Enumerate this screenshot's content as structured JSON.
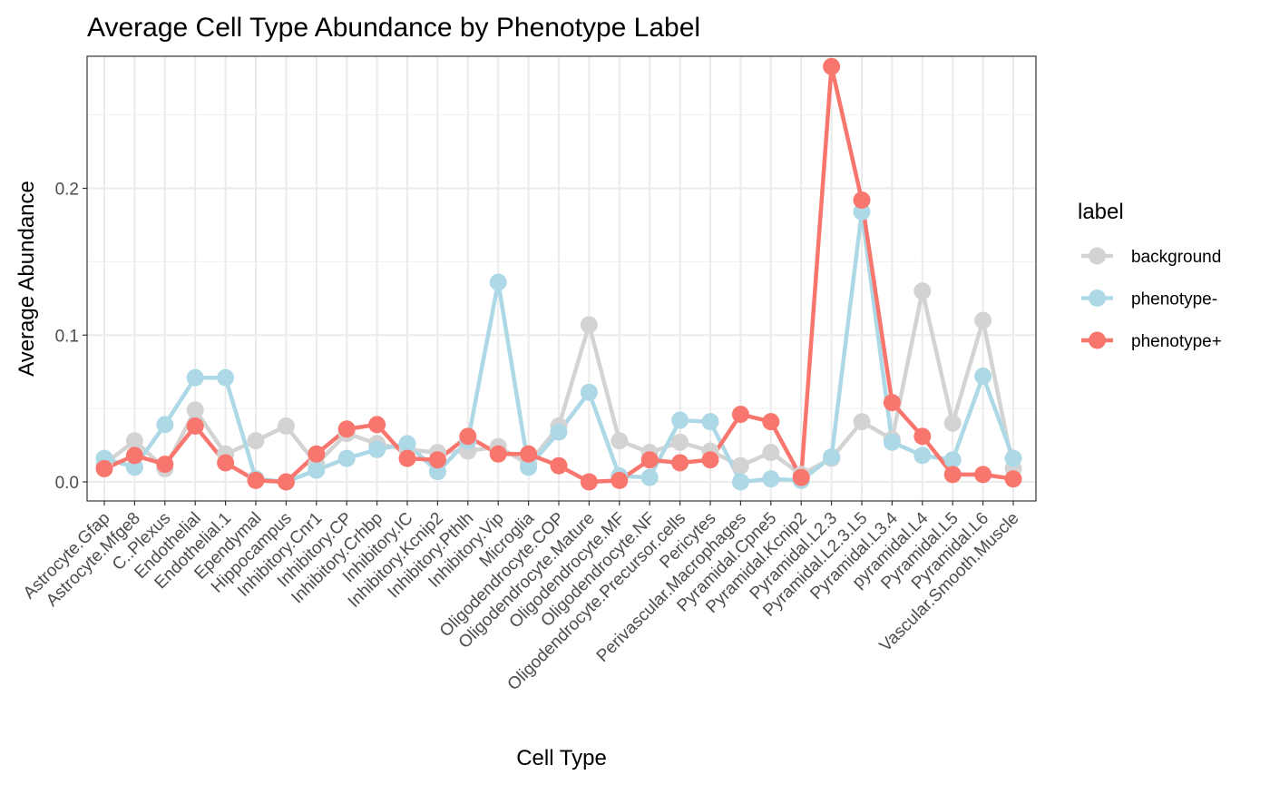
{
  "chart_data": {
    "type": "line",
    "title": "Average Cell Type Abundance by Phenotype Label",
    "xlabel": "Cell Type",
    "ylabel": "Average Abundance",
    "ylim": [
      -0.013,
      0.29
    ],
    "yticks": [
      0.0,
      0.1,
      0.2
    ],
    "ytick_labels": [
      "0.0",
      "0.1",
      "0.2"
    ],
    "grid": true,
    "legend": {
      "title": "label",
      "position": "right"
    },
    "categories": [
      "Astrocyte.Gfap",
      "Astrocyte.Mfge8",
      "C..Plexus",
      "Endothelial",
      "Endothelial.1",
      "Ependymal",
      "Hippocampus",
      "Inhibitory.Cnr1",
      "Inhibitory.CP",
      "Inhibitory.Crhbp",
      "Inhibitory.IC",
      "Inhibitory.Kcnip2",
      "Inhibitory.Pthlh",
      "Inhibitory.Vip",
      "Microglia",
      "Oligodendrocyte.COP",
      "Oligodendrocyte.Mature",
      "Oligodendrocyte.MF",
      "Oligodendrocyte.NF",
      "Oligodendrocyte.Precursor.cells",
      "Pericytes",
      "Perivascular.Macrophages",
      "Pyramidal.Cpne5",
      "Pyramidal.Kcnip2",
      "Pyramidal.L2.3",
      "Pyramidal.L2.3.L5",
      "Pyramidal.L3.4",
      "pyramidal.L4",
      "Pyramidal.L5",
      "Pyramidal.L6",
      "Vascular.Smooth.Muscle"
    ],
    "series": [
      {
        "name": "background",
        "color": "#D3D3D3",
        "values": [
          0.012,
          0.028,
          0.009,
          0.049,
          0.019,
          0.028,
          0.038,
          0.012,
          0.033,
          0.026,
          0.022,
          0.02,
          0.021,
          0.024,
          0.012,
          0.038,
          0.107,
          0.028,
          0.02,
          0.027,
          0.021,
          0.011,
          0.02,
          0.005,
          0.016,
          0.041,
          0.029,
          0.13,
          0.04,
          0.11,
          0.009
        ]
      },
      {
        "name": "phenotype-",
        "color": "#ADD8E6",
        "values": [
          0.016,
          0.01,
          0.039,
          0.071,
          0.071,
          0.002,
          0.0,
          0.008,
          0.016,
          0.022,
          0.026,
          0.007,
          0.028,
          0.136,
          0.01,
          0.034,
          0.061,
          0.004,
          0.003,
          0.042,
          0.041,
          0.0,
          0.002,
          0.001,
          0.017,
          0.184,
          0.027,
          0.018,
          0.015,
          0.072,
          0.016
        ]
      },
      {
        "name": "phenotype+",
        "color": "#F8766D",
        "values": [
          0.009,
          0.018,
          0.012,
          0.038,
          0.013,
          0.001,
          0.0,
          0.019,
          0.036,
          0.039,
          0.016,
          0.015,
          0.031,
          0.019,
          0.019,
          0.011,
          0.0,
          0.001,
          0.015,
          0.013,
          0.015,
          0.046,
          0.041,
          0.003,
          0.283,
          0.192,
          0.054,
          0.031,
          0.005,
          0.005,
          0.002
        ]
      }
    ]
  }
}
